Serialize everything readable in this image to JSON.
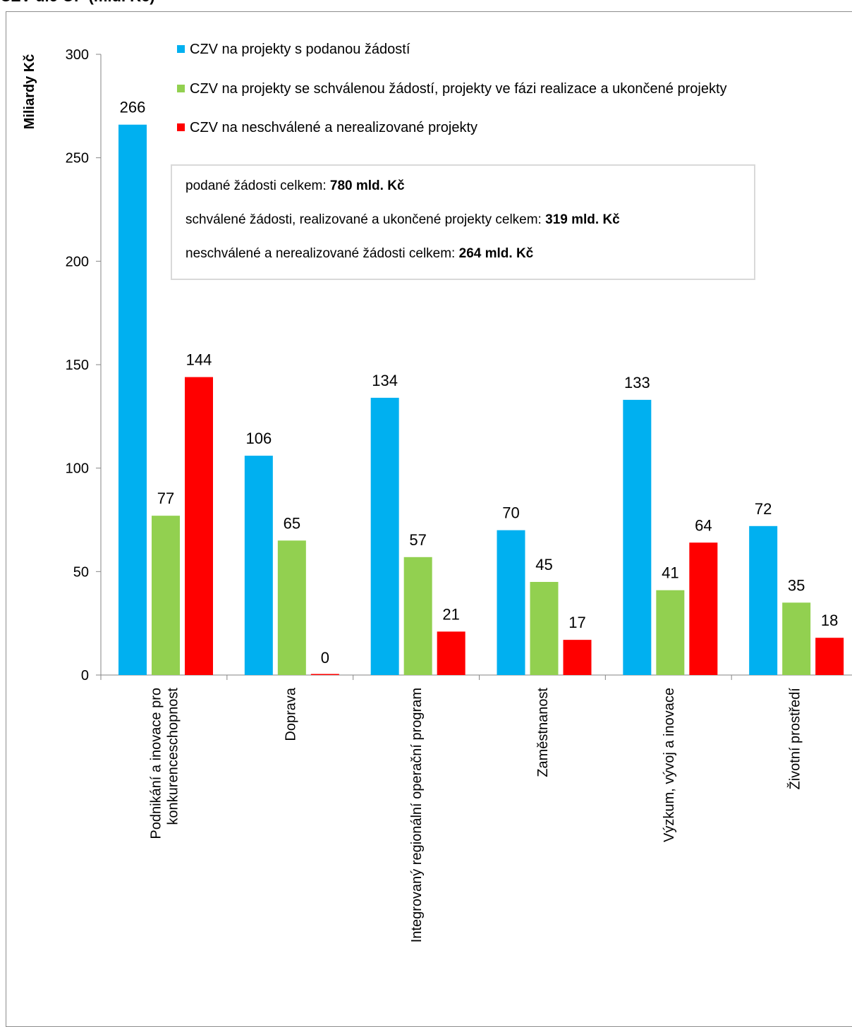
{
  "page_title_cut": "CZV dle OP (mld. Kč)",
  "info_box": {
    "line1_text": "podané žádosti celkem: ",
    "line1_value": "780 mld.  Kč",
    "line2_text": "schválené žádosti, realizované a ukončené projekty celkem: ",
    "line2_value": "319 mld. Kč",
    "line3_text": "neschválené a nerealizované žádosti celkem: ",
    "line3_value": "264 mld. Kč"
  },
  "chart_data": {
    "type": "bar",
    "ylabel": "Miliardy Kč",
    "xlabel": "",
    "ylim": [
      0,
      300
    ],
    "yticks": [
      0,
      50,
      100,
      150,
      200,
      250,
      300
    ],
    "categories": [
      [
        "Podnikání a inovace pro",
        "konkurenceschopnost"
      ],
      [
        "Doprava"
      ],
      [
        "Integrovaný regionální operační program"
      ],
      [
        "Zaměstnanost"
      ],
      [
        "Výzkum, vývoj a inovace"
      ],
      [
        "Životní prostředí"
      ]
    ],
    "series": [
      {
        "name": "CZV na projekty s podanou žádostí",
        "color": "#00b0f0",
        "values": [
          266,
          106,
          134,
          70,
          133,
          72
        ]
      },
      {
        "name": "CZV na projekty se schválenou žádostí, projekty ve fázi realizace a ukončené projekty",
        "color": "#92d050",
        "values": [
          77,
          65,
          57,
          45,
          41,
          35
        ]
      },
      {
        "name": "CZV na neschválené a nerealizované projekty",
        "color": "#ff0000",
        "values": [
          144,
          0,
          21,
          17,
          64,
          18
        ]
      }
    ],
    "grid": false,
    "legend_position": "top"
  }
}
